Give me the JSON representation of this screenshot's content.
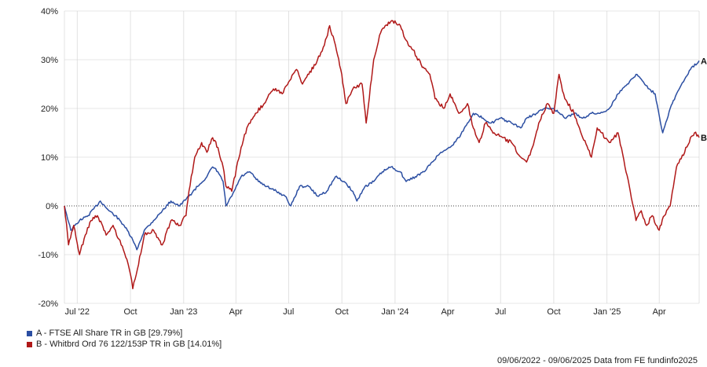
{
  "chart_data": {
    "type": "line",
    "x_range": [
      "2022-06-09",
      "2025-06-09"
    ],
    "ylim": [
      -20,
      40
    ],
    "y_ticks": [
      -20,
      -10,
      0,
      10,
      20,
      30,
      40
    ],
    "y_tick_labels": [
      "-20%",
      "-10%",
      "0%",
      "10%",
      "20%",
      "30%",
      "40%"
    ],
    "x_ticks": [
      {
        "date": "2022-07-01",
        "label": "Jul '22"
      },
      {
        "date": "2022-10-01",
        "label": "Oct"
      },
      {
        "date": "2023-01-01",
        "label": "Jan '23"
      },
      {
        "date": "2023-04-01",
        "label": "Apr"
      },
      {
        "date": "2023-07-01",
        "label": "Jul"
      },
      {
        "date": "2023-10-01",
        "label": "Oct"
      },
      {
        "date": "2024-01-01",
        "label": "Jan '24"
      },
      {
        "date": "2024-04-01",
        "label": "Apr"
      },
      {
        "date": "2024-07-01",
        "label": "Jul"
      },
      {
        "date": "2024-10-01",
        "label": "Oct"
      },
      {
        "date": "2025-01-01",
        "label": "Jan '25"
      },
      {
        "date": "2025-04-01",
        "label": "Apr"
      }
    ],
    "grid": true,
    "zero_line": "dotted",
    "series": [
      {
        "name": "A - FTSE All Share TR in GB [29.79%]",
        "end_label": "A",
        "color": "#2b4ea2",
        "points": [
          [
            "2022-06-09",
            0
          ],
          [
            "2022-06-20",
            -5
          ],
          [
            "2022-07-05",
            -3
          ],
          [
            "2022-07-20",
            -2
          ],
          [
            "2022-08-10",
            1
          ],
          [
            "2022-08-25",
            -1
          ],
          [
            "2022-09-05",
            -2
          ],
          [
            "2022-09-20",
            -4
          ],
          [
            "2022-10-05",
            -7
          ],
          [
            "2022-10-12",
            -9
          ],
          [
            "2022-10-25",
            -5
          ],
          [
            "2022-11-10",
            -3
          ],
          [
            "2022-11-25",
            -1
          ],
          [
            "2022-12-10",
            1
          ],
          [
            "2022-12-25",
            0
          ],
          [
            "2023-01-10",
            2
          ],
          [
            "2023-01-25",
            4
          ],
          [
            "2023-02-10",
            6
          ],
          [
            "2023-02-20",
            8
          ],
          [
            "2023-03-01",
            7
          ],
          [
            "2023-03-10",
            5
          ],
          [
            "2023-03-15",
            0
          ],
          [
            "2023-03-25",
            2
          ],
          [
            "2023-04-10",
            6
          ],
          [
            "2023-04-25",
            7
          ],
          [
            "2023-05-10",
            5
          ],
          [
            "2023-05-25",
            4
          ],
          [
            "2023-06-10",
            3
          ],
          [
            "2023-06-25",
            2
          ],
          [
            "2023-07-05",
            0
          ],
          [
            "2023-07-20",
            4
          ],
          [
            "2023-08-05",
            4
          ],
          [
            "2023-08-20",
            2
          ],
          [
            "2023-09-05",
            3
          ],
          [
            "2023-09-20",
            6
          ],
          [
            "2023-10-05",
            5
          ],
          [
            "2023-10-20",
            3
          ],
          [
            "2023-10-27",
            1
          ],
          [
            "2023-11-10",
            4
          ],
          [
            "2023-11-25",
            5
          ],
          [
            "2023-12-10",
            7
          ],
          [
            "2023-12-25",
            8
          ],
          [
            "2024-01-10",
            7
          ],
          [
            "2024-01-20",
            5
          ],
          [
            "2024-02-05",
            6
          ],
          [
            "2024-02-20",
            7
          ],
          [
            "2024-03-05",
            9
          ],
          [
            "2024-03-20",
            11
          ],
          [
            "2024-04-05",
            12
          ],
          [
            "2024-04-20",
            14
          ],
          [
            "2024-05-05",
            17
          ],
          [
            "2024-05-15",
            19
          ],
          [
            "2024-06-01",
            18
          ],
          [
            "2024-06-15",
            17
          ],
          [
            "2024-07-01",
            18
          ],
          [
            "2024-07-20",
            17
          ],
          [
            "2024-08-05",
            16
          ],
          [
            "2024-08-15",
            18
          ],
          [
            "2024-09-01",
            19
          ],
          [
            "2024-09-15",
            20
          ],
          [
            "2024-10-01",
            20
          ],
          [
            "2024-10-20",
            18
          ],
          [
            "2024-11-05",
            19
          ],
          [
            "2024-11-20",
            18
          ],
          [
            "2024-12-05",
            19
          ],
          [
            "2024-12-20",
            19
          ],
          [
            "2025-01-05",
            20
          ],
          [
            "2025-01-20",
            23
          ],
          [
            "2025-02-05",
            25
          ],
          [
            "2025-02-20",
            27
          ],
          [
            "2025-03-01",
            26
          ],
          [
            "2025-03-15",
            24
          ],
          [
            "2025-03-25",
            23
          ],
          [
            "2025-04-07",
            15
          ],
          [
            "2025-04-20",
            20
          ],
          [
            "2025-05-01",
            23
          ],
          [
            "2025-05-15",
            26
          ],
          [
            "2025-05-25",
            28
          ],
          [
            "2025-06-09",
            29.79
          ]
        ]
      },
      {
        "name": "B - Whitbrd Ord 76 122/153P TR in GB [14.01%]",
        "end_label": "B",
        "color": "#b01818",
        "points": [
          [
            "2022-06-09",
            0
          ],
          [
            "2022-06-16",
            -8
          ],
          [
            "2022-06-25",
            -4
          ],
          [
            "2022-07-05",
            -10
          ],
          [
            "2022-07-15",
            -6
          ],
          [
            "2022-07-25",
            -3
          ],
          [
            "2022-08-05",
            -2
          ],
          [
            "2022-08-20",
            -6
          ],
          [
            "2022-09-01",
            -4
          ],
          [
            "2022-09-15",
            -8
          ],
          [
            "2022-09-25",
            -11
          ],
          [
            "2022-10-01",
            -14
          ],
          [
            "2022-10-05",
            -17
          ],
          [
            "2022-10-13",
            -13
          ],
          [
            "2022-10-25",
            -6
          ],
          [
            "2022-11-10",
            -5
          ],
          [
            "2022-11-25",
            -8
          ],
          [
            "2022-12-10",
            -3
          ],
          [
            "2022-12-25",
            -4
          ],
          [
            "2023-01-05",
            -2
          ],
          [
            "2023-01-10",
            3
          ],
          [
            "2023-01-20",
            10
          ],
          [
            "2023-02-01",
            13
          ],
          [
            "2023-02-10",
            11
          ],
          [
            "2023-02-20",
            14
          ],
          [
            "2023-03-01",
            12
          ],
          [
            "2023-03-10",
            8
          ],
          [
            "2023-03-15",
            4
          ],
          [
            "2023-03-25",
            3
          ],
          [
            "2023-04-10",
            12
          ],
          [
            "2023-04-20",
            16
          ],
          [
            "2023-05-05",
            19
          ],
          [
            "2023-05-20",
            21
          ],
          [
            "2023-06-05",
            24
          ],
          [
            "2023-06-20",
            23
          ],
          [
            "2023-07-05",
            26
          ],
          [
            "2023-07-15",
            28
          ],
          [
            "2023-07-25",
            25
          ],
          [
            "2023-08-05",
            27
          ],
          [
            "2023-08-20",
            30
          ],
          [
            "2023-09-01",
            33
          ],
          [
            "2023-09-10",
            37
          ],
          [
            "2023-09-20",
            33
          ],
          [
            "2023-10-01",
            27
          ],
          [
            "2023-10-08",
            21
          ],
          [
            "2023-10-20",
            24
          ],
          [
            "2023-11-05",
            25
          ],
          [
            "2023-11-12",
            17
          ],
          [
            "2023-11-25",
            30
          ],
          [
            "2023-12-05",
            35
          ],
          [
            "2023-12-15",
            37
          ],
          [
            "2023-12-28",
            38
          ],
          [
            "2024-01-10",
            37
          ],
          [
            "2024-01-20",
            34
          ],
          [
            "2024-02-01",
            32
          ],
          [
            "2024-02-15",
            29
          ],
          [
            "2024-03-01",
            27
          ],
          [
            "2024-03-10",
            22
          ],
          [
            "2024-03-25",
            20
          ],
          [
            "2024-04-05",
            23
          ],
          [
            "2024-04-20",
            19
          ],
          [
            "2024-05-05",
            21
          ],
          [
            "2024-05-15",
            16
          ],
          [
            "2024-05-25",
            13
          ],
          [
            "2024-06-05",
            17
          ],
          [
            "2024-06-20",
            15
          ],
          [
            "2024-07-05",
            14
          ],
          [
            "2024-07-20",
            13
          ],
          [
            "2024-08-05",
            10
          ],
          [
            "2024-08-15",
            9
          ],
          [
            "2024-08-25",
            12
          ],
          [
            "2024-09-05",
            17
          ],
          [
            "2024-09-20",
            21
          ],
          [
            "2024-10-01",
            19
          ],
          [
            "2024-10-10",
            27
          ],
          [
            "2024-10-20",
            22
          ],
          [
            "2024-11-05",
            19
          ],
          [
            "2024-11-20",
            14
          ],
          [
            "2024-12-05",
            10
          ],
          [
            "2024-12-15",
            16
          ],
          [
            "2025-01-05",
            13
          ],
          [
            "2025-01-20",
            15
          ],
          [
            "2025-02-01",
            8
          ],
          [
            "2025-02-10",
            3
          ],
          [
            "2025-02-20",
            -3
          ],
          [
            "2025-03-01",
            -1
          ],
          [
            "2025-03-10",
            -4
          ],
          [
            "2025-03-20",
            -2
          ],
          [
            "2025-04-01",
            -5
          ],
          [
            "2025-04-10",
            -2
          ],
          [
            "2025-04-20",
            0
          ],
          [
            "2025-05-01",
            8
          ],
          [
            "2025-05-15",
            11
          ],
          [
            "2025-05-25",
            14
          ],
          [
            "2025-06-01",
            15
          ],
          [
            "2025-06-09",
            14.01
          ]
        ]
      }
    ]
  },
  "footer": "09/06/2022 - 09/06/2025 Data from FE fundinfo2025"
}
